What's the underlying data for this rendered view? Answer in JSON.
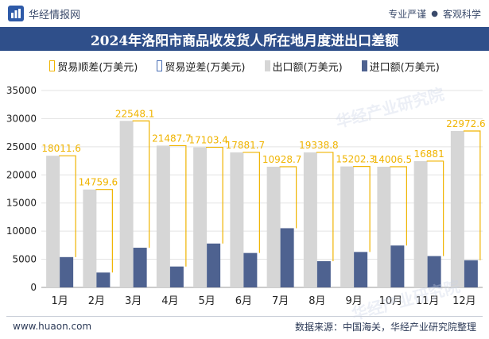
{
  "header": {
    "site_name": "华经情报网",
    "slogan_left": "专业严谨",
    "slogan_dot": "●",
    "slogan_right": "客观科学"
  },
  "title": "2024年洛阳市商品收发货人所在地月度进出口差额",
  "legend": [
    {
      "label": "贸易顺差(万美元)",
      "color": "#f0b400",
      "style": "outline"
    },
    {
      "label": "贸易逆差(万美元)",
      "color": "#4a6fb5",
      "style": "outline"
    },
    {
      "label": "出口额(万美元)",
      "color": "#d6d6d6",
      "style": "fill"
    },
    {
      "label": "进口额(万美元)",
      "color": "#4e6290",
      "style": "fill"
    }
  ],
  "chart_data": {
    "type": "bar",
    "categories": [
      "1月",
      "2月",
      "3月",
      "4月",
      "5月",
      "6月",
      "7月",
      "8月",
      "9月",
      "10月",
      "11月",
      "12月"
    ],
    "series": [
      {
        "name": "出口额(万美元)",
        "values": [
          23400,
          17400,
          29600,
          25200,
          24900,
          24000,
          21450,
          24000,
          21500,
          21450,
          22450,
          27800
        ]
      },
      {
        "name": "进口额(万美元)",
        "values": [
          5389,
          2640,
          7052,
          3713,
          7797,
          6118,
          10521,
          4661,
          6298,
          7444,
          5569,
          4827
        ]
      },
      {
        "name": "贸易顺差(万美元)",
        "values": [
          18011.6,
          14759.6,
          22548.1,
          21487.7,
          17103.4,
          17881.7,
          10928.7,
          19338.8,
          15202.3,
          14006.5,
          16881,
          22972.6
        ]
      }
    ],
    "data_labels": [
      "18011.6",
      "14759.6",
      "22548.1",
      "21487.7",
      "17103.4",
      "17881.7",
      "10928.7",
      "19338.8",
      "15202.3",
      "14006.5",
      "16881",
      "22972.6"
    ],
    "yticks": [
      "0",
      "5000",
      "10000",
      "15000",
      "20000",
      "25000",
      "30000",
      "35000"
    ],
    "ylim": [
      0,
      35000
    ],
    "grid": true,
    "legend_position": "top",
    "colors": {
      "export": "#d6d6d6",
      "import": "#4e6290",
      "surplus": "#f0b400",
      "deficit": "#4a6fb5"
    }
  },
  "footer": {
    "url": "www.huaon.com",
    "source": "数据来源：中国海关，华经产业研究院整理"
  },
  "watermark": "华经产业研究院"
}
